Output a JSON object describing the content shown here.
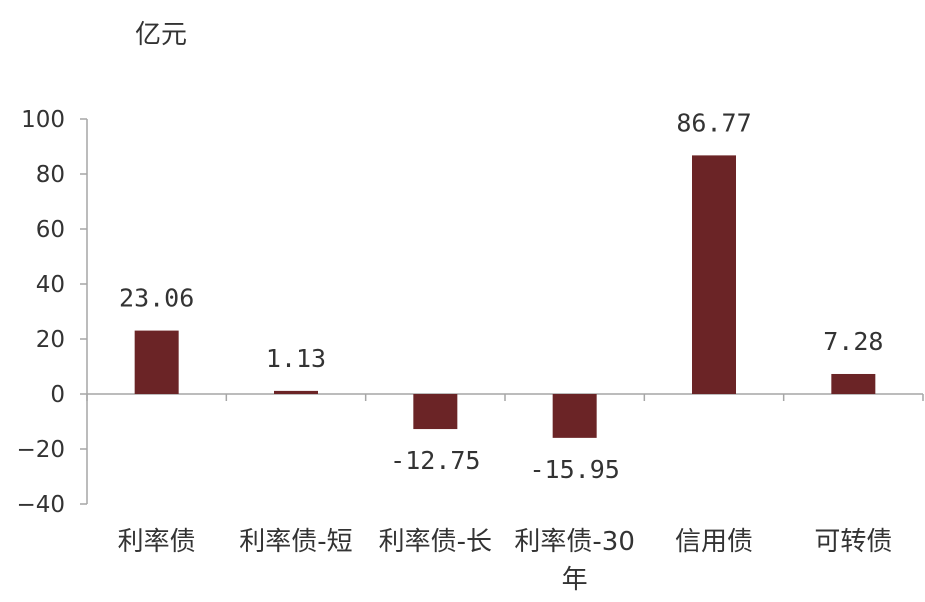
{
  "chart_data": {
    "type": "bar",
    "ylabel": "亿元",
    "categories": [
      "利率债",
      "利率债-短",
      "利率债-长",
      "利率债-30\n年",
      "信用债",
      "可转债"
    ],
    "values": [
      23.06,
      1.13,
      -12.75,
      -15.95,
      86.77,
      7.28
    ],
    "value_labels": [
      "23.06",
      "1.13",
      "-12.75",
      "-15.95",
      "86.77",
      "7.28"
    ],
    "yticks": [
      "100",
      "80",
      "60",
      "40",
      "20",
      "0",
      "-20",
      "-40"
    ],
    "ylim": [
      -40,
      100
    ],
    "grid": false,
    "legend": "none",
    "colors": {
      "bar": "#6B2426",
      "axis": "#A6A6A6",
      "text": "#333333"
    }
  }
}
